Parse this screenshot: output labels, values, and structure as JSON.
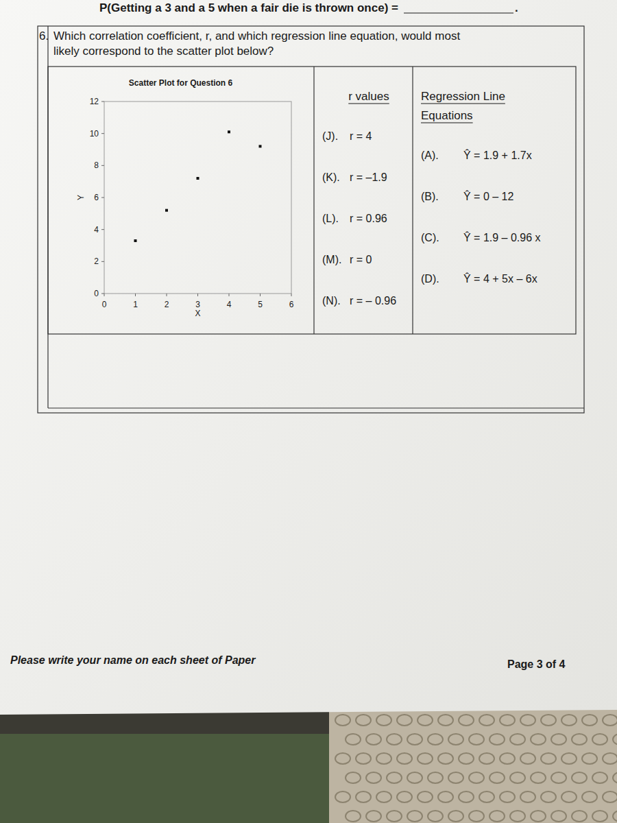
{
  "header": {
    "probability_question": "P(Getting a 3 and a 5 when a fair die is thrown once) =",
    "blank_end": "."
  },
  "question": {
    "number": "6.",
    "text_lines": [
      "Which correlation coefficient, r, and which regression line equation, would most",
      "likely correspond to the scatter plot below?"
    ]
  },
  "chart_data": {
    "type": "scatter",
    "title": "Scatter Plot for Question 6",
    "x_label": "X",
    "y_label": "Y",
    "x": [
      1,
      2,
      3,
      4,
      5
    ],
    "values": [
      3.3,
      5.2,
      7.2,
      10.1,
      9.2
    ],
    "color": "#111111",
    "marker": "square",
    "xlim": [
      0,
      6
    ],
    "xticks": [
      0,
      1,
      2,
      3,
      4,
      5,
      6
    ],
    "ylim": [
      0,
      12
    ],
    "yticks": [
      0,
      2,
      4,
      6,
      8,
      10,
      12
    ],
    "grid": false
  },
  "r_values": {
    "title": "r values",
    "options": [
      {
        "label": "(J).",
        "text": "r = 4"
      },
      {
        "label": "(K).",
        "text": "r = –1.9"
      },
      {
        "label": "(L).",
        "text": "r = 0.96"
      },
      {
        "label": "(M).",
        "text": "r = 0"
      },
      {
        "label": "(N).",
        "text": "r = – 0.96"
      }
    ]
  },
  "regression": {
    "title_lines": [
      "Regression Line",
      "Equations"
    ],
    "options": [
      {
        "label": "(A).",
        "text": "Ŷ = 1.9 + 1.7x"
      },
      {
        "label": "(B).",
        "text": "Ŷ = 0 – 12"
      },
      {
        "label": "(C).",
        "text": "Ŷ = 1.9 – 0.96 x"
      },
      {
        "label": "(D).",
        "text": "Ŷ = 4 + 5x – 6x"
      }
    ]
  },
  "footer": {
    "note": "Please write your name on each sheet of Paper",
    "page": "Page 3 of 4"
  }
}
